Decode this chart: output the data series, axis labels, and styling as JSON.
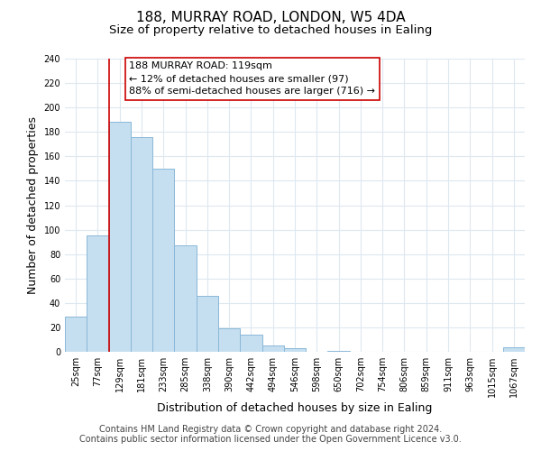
{
  "title": "188, MURRAY ROAD, LONDON, W5 4DA",
  "subtitle": "Size of property relative to detached houses in Ealing",
  "xlabel": "Distribution of detached houses by size in Ealing",
  "ylabel": "Number of detached properties",
  "bar_color": "#c5dff0",
  "bar_edge_color": "#8ab8d8",
  "grid_color": "#dde8f0",
  "annotation_box_color": "#ffffff",
  "annotation_border_color": "#cc0000",
  "vertical_line_color": "#cc0000",
  "categories": [
    "25sqm",
    "77sqm",
    "129sqm",
    "181sqm",
    "233sqm",
    "285sqm",
    "338sqm",
    "390sqm",
    "442sqm",
    "494sqm",
    "546sqm",
    "598sqm",
    "650sqm",
    "702sqm",
    "754sqm",
    "806sqm",
    "859sqm",
    "911sqm",
    "963sqm",
    "1015sqm",
    "1067sqm"
  ],
  "values": [
    29,
    95,
    188,
    176,
    150,
    87,
    46,
    19,
    14,
    5,
    3,
    0,
    1,
    0,
    0,
    0,
    0,
    0,
    0,
    0,
    4
  ],
  "ylim": [
    0,
    240
  ],
  "yticks": [
    0,
    20,
    40,
    60,
    80,
    100,
    120,
    140,
    160,
    180,
    200,
    220,
    240
  ],
  "vline_x_index": 2,
  "annotation_text_line1": "188 MURRAY ROAD: 119sqm",
  "annotation_text_line2": "← 12% of detached houses are smaller (97)",
  "annotation_text_line3": "88% of semi-detached houses are larger (716) →",
  "footer_line1": "Contains HM Land Registry data © Crown copyright and database right 2024.",
  "footer_line2": "Contains public sector information licensed under the Open Government Licence v3.0.",
  "background_color": "#ffffff",
  "title_fontsize": 11,
  "subtitle_fontsize": 9.5,
  "axis_label_fontsize": 9,
  "tick_fontsize": 7,
  "annotation_fontsize": 8,
  "footer_fontsize": 7
}
